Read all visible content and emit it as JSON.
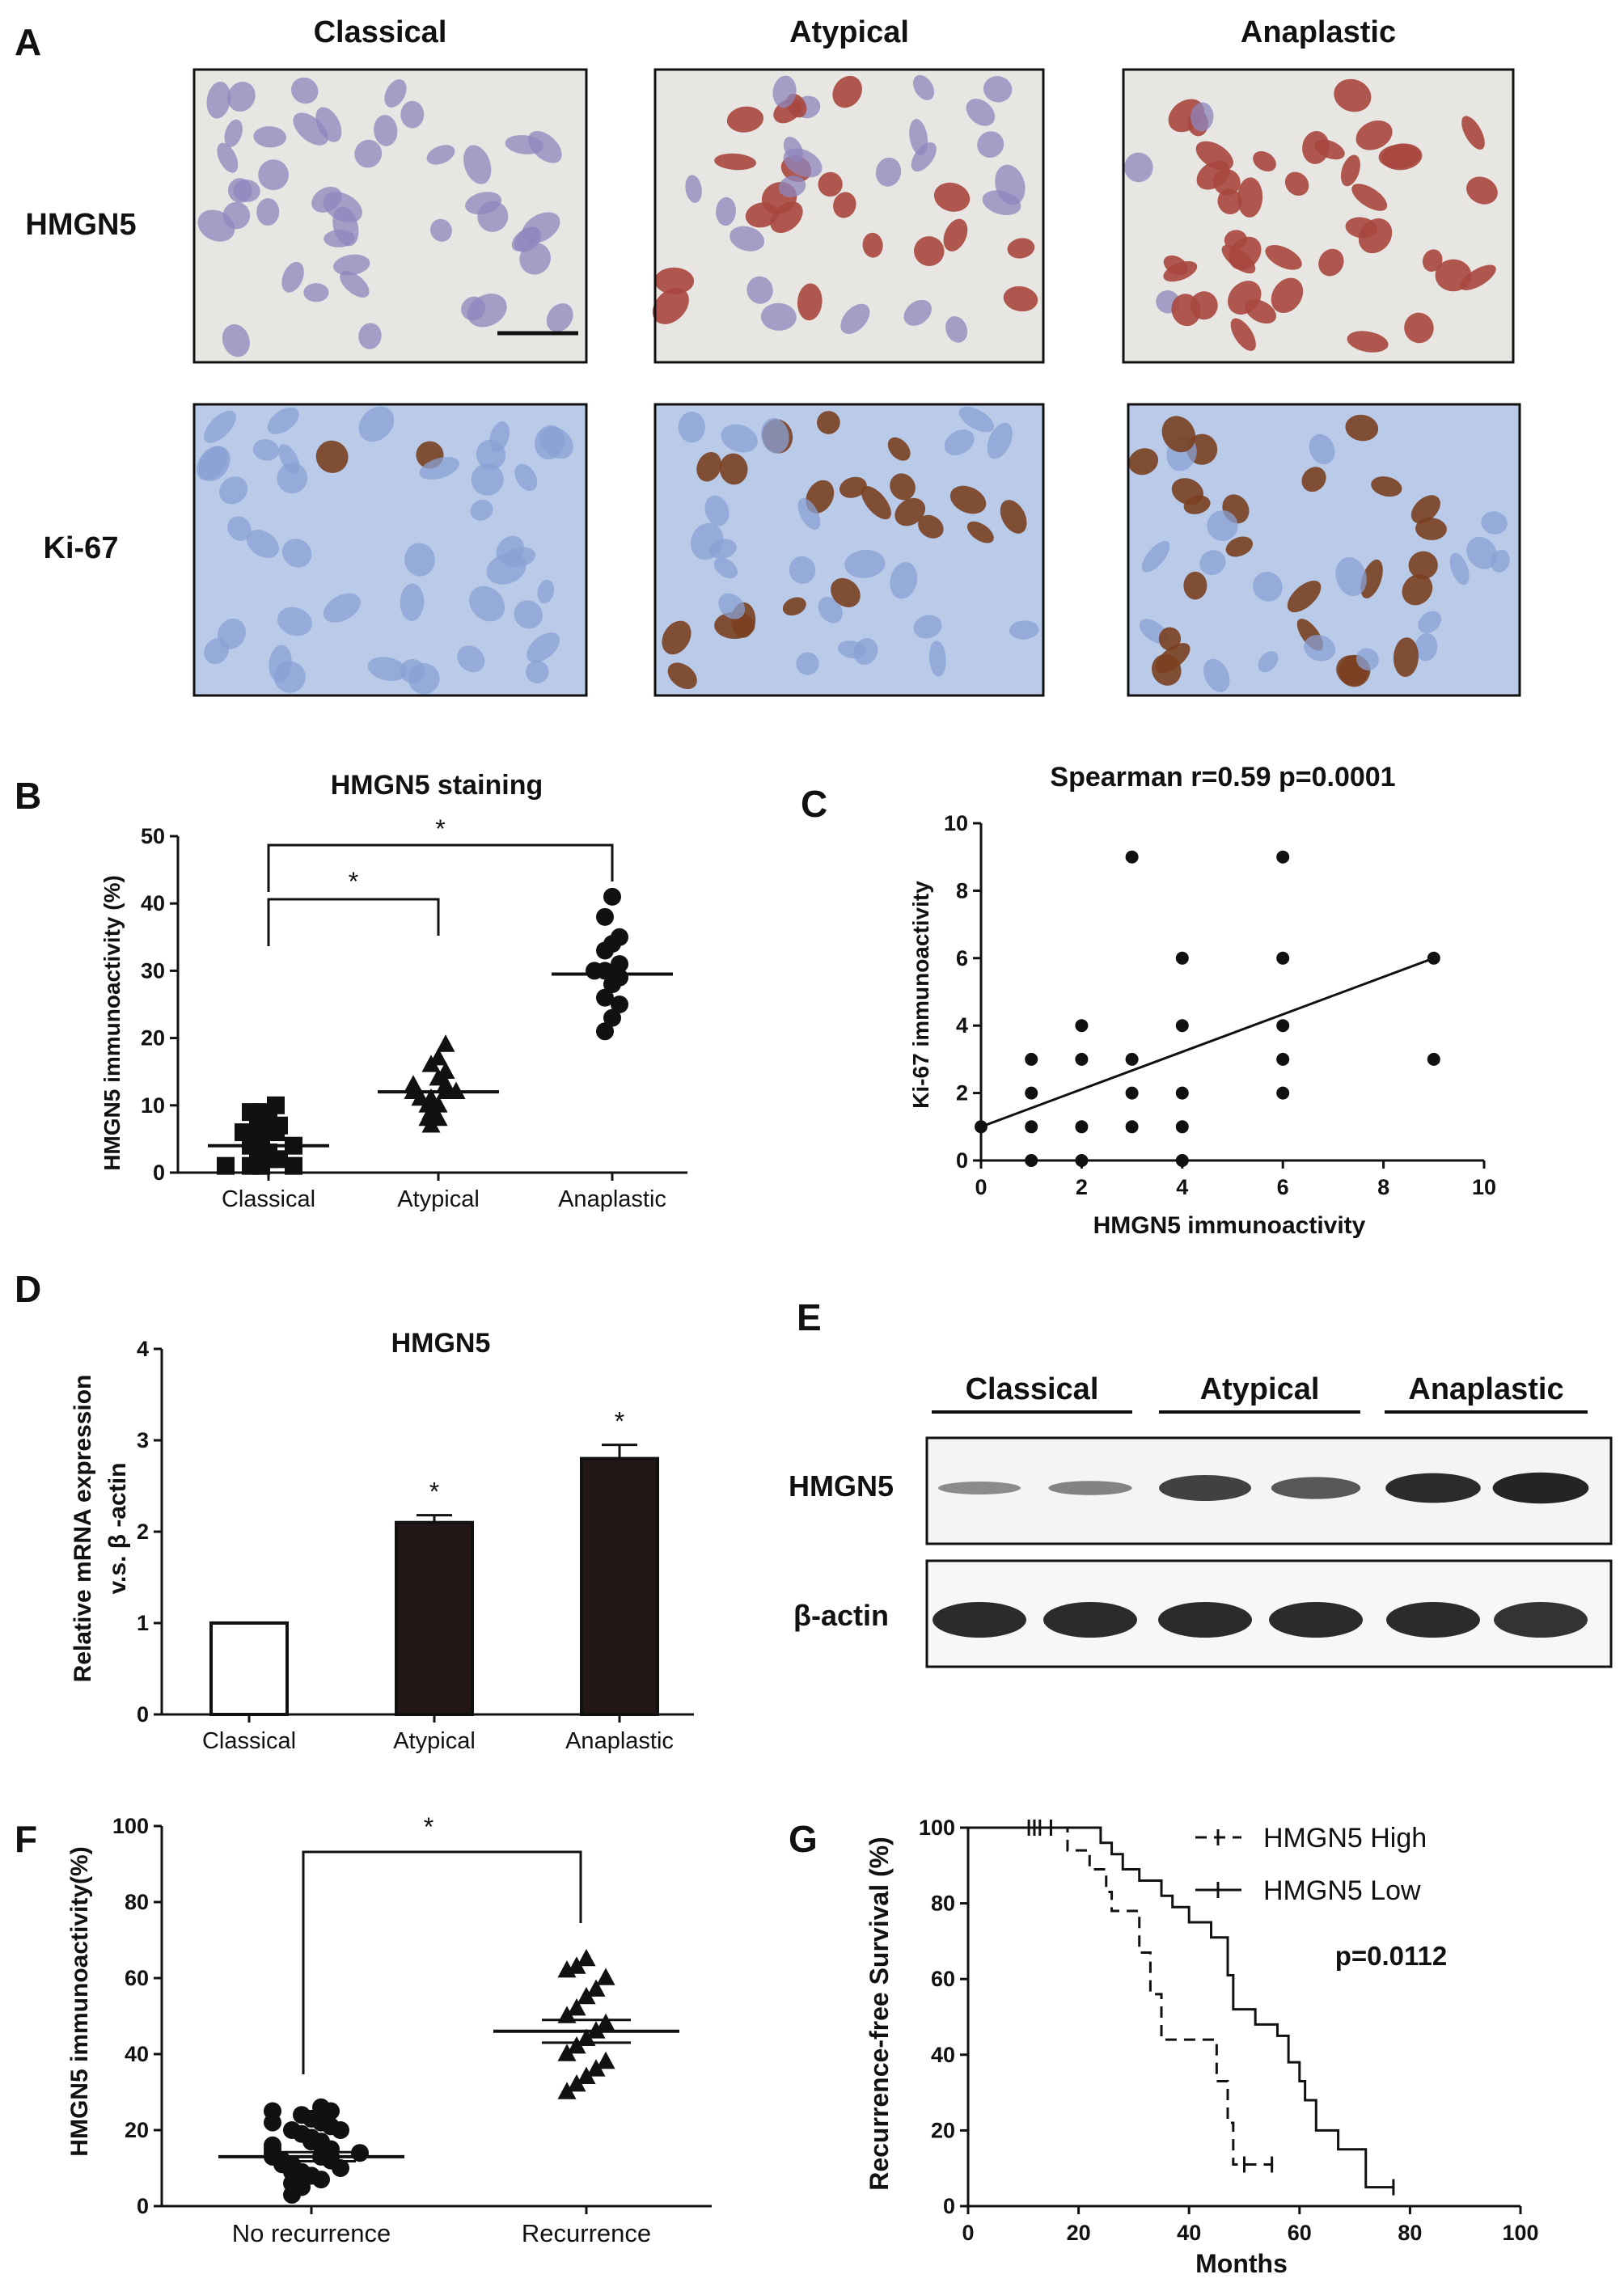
{
  "panels": {
    "A": {
      "letter": "A",
      "columns": [
        "Classical",
        "Atypical",
        "Anaplastic"
      ],
      "rows": [
        "HMGN5",
        "Ki-67"
      ],
      "colors": {
        "hmgn5_bg": "#e8e6e3",
        "hmgn5_cell": "#8d86bd",
        "hmgn5_pos": "#a8473e",
        "ki67_bg": "#b9cbe8",
        "ki67_cell": "#8aa0d4",
        "ki67_pos": "#7a4020"
      }
    },
    "E": {
      "letter": "E",
      "groups": [
        "Classical",
        "Atypical",
        "Anaplastic"
      ],
      "rows": [
        "HMGN5",
        "β-actin"
      ],
      "band_intensity": {
        "HMGN5": [
          0.25,
          0.3,
          0.75,
          0.6,
          0.9,
          0.95
        ],
        "beta_actin": [
          0.9,
          0.9,
          0.9,
          0.9,
          0.9,
          0.85
        ]
      }
    }
  },
  "chart_data": [
    {
      "id": "B",
      "letter": "B",
      "type": "scatter",
      "title": "HMGN5 staining",
      "xlabel": "",
      "ylabel": "HMGN5 immunoactivity (%)",
      "categories": [
        "Classical",
        "Atypical",
        "Anaplastic"
      ],
      "ylim": [
        0,
        50
      ],
      "yticks": [
        0,
        10,
        20,
        30,
        40,
        50
      ],
      "series": [
        {
          "marker": "square",
          "values": [
            1,
            1,
            1,
            1,
            2,
            2,
            2,
            3,
            3,
            4,
            4,
            4,
            5,
            5,
            6,
            6,
            7,
            7,
            7,
            8,
            8,
            9,
            9,
            10
          ]
        },
        {
          "marker": "triangle",
          "values": [
            7,
            8,
            8,
            9,
            10,
            10,
            11,
            11,
            12,
            12,
            12,
            13,
            13,
            14,
            15,
            16,
            17,
            19
          ]
        },
        {
          "marker": "circle",
          "values": [
            21,
            23,
            25,
            26,
            28,
            29,
            30,
            30,
            31,
            33,
            34,
            35,
            38,
            41
          ]
        }
      ],
      "means": [
        4,
        12,
        29.5
      ],
      "significance": [
        {
          "from": 0,
          "to": 1,
          "label": "*"
        },
        {
          "from": 0,
          "to": 2,
          "label": "*"
        }
      ]
    },
    {
      "id": "C",
      "letter": "C",
      "type": "scatter",
      "title": "Spearman r=0.59 p=0.0001",
      "xlabel": "HMGN5 immunoactivity",
      "ylabel": "Ki-67 immunoactivity",
      "xlim": [
        0,
        10
      ],
      "ylim": [
        0,
        10
      ],
      "xticks": [
        0,
        2,
        4,
        6,
        8,
        10
      ],
      "yticks": [
        0,
        2,
        4,
        6,
        8,
        10
      ],
      "points": [
        [
          0,
          1
        ],
        [
          1,
          0
        ],
        [
          1,
          1
        ],
        [
          1,
          2
        ],
        [
          1,
          3
        ],
        [
          2,
          0
        ],
        [
          2,
          1
        ],
        [
          2,
          3
        ],
        [
          2,
          4
        ],
        [
          3,
          1
        ],
        [
          3,
          2
        ],
        [
          3,
          3
        ],
        [
          3,
          9
        ],
        [
          4,
          0
        ],
        [
          4,
          1
        ],
        [
          4,
          2
        ],
        [
          4,
          4
        ],
        [
          4,
          6
        ],
        [
          6,
          2
        ],
        [
          6,
          3
        ],
        [
          6,
          4
        ],
        [
          6,
          6
        ],
        [
          6,
          9
        ],
        [
          9,
          3
        ],
        [
          9,
          6
        ]
      ],
      "fit_line": [
        [
          0,
          1
        ],
        [
          9,
          6
        ]
      ]
    },
    {
      "id": "D",
      "letter": "D",
      "type": "bar",
      "title": "HMGN5",
      "xlabel": "",
      "ylabel_lines": [
        "Relative mRNA expression",
        "v.s. β -actin"
      ],
      "categories": [
        "Classical",
        "Atypical",
        "Anaplastic"
      ],
      "values": [
        1.0,
        2.1,
        2.8
      ],
      "errors": [
        0,
        0.08,
        0.15
      ],
      "fills": [
        "#ffffff",
        "#231815",
        "#231815"
      ],
      "annotations": [
        "",
        "*",
        "*"
      ],
      "ylim": [
        0,
        4
      ],
      "yticks": [
        0,
        1,
        2,
        3,
        4
      ]
    },
    {
      "id": "F",
      "letter": "F",
      "type": "scatter",
      "title": "",
      "xlabel": "",
      "ylabel": "HMGN5 immunoactivity(%)",
      "categories": [
        "No recurrence",
        "Recurrence"
      ],
      "ylim": [
        0,
        100
      ],
      "yticks": [
        0,
        20,
        40,
        60,
        80,
        100
      ],
      "series": [
        {
          "marker": "circle",
          "values": [
            3,
            5,
            6,
            7,
            8,
            8,
            9,
            9,
            10,
            10,
            11,
            11,
            12,
            12,
            13,
            13,
            13,
            14,
            14,
            15,
            15,
            16,
            16,
            17,
            17,
            18,
            19,
            20,
            20,
            21,
            22,
            22,
            23,
            24,
            25,
            25,
            26
          ]
        },
        {
          "marker": "triangle",
          "values": [
            30,
            32,
            34,
            36,
            38,
            40,
            42,
            44,
            46,
            48,
            50,
            52,
            55,
            57,
            60,
            62,
            63,
            65
          ]
        }
      ],
      "means": [
        13,
        46
      ],
      "sem": [
        1.2,
        3
      ],
      "significance": [
        {
          "from": 0,
          "to": 1,
          "label": "*"
        }
      ]
    },
    {
      "id": "G",
      "letter": "G",
      "type": "line",
      "title": "",
      "xlabel": "Months",
      "ylabel": "Recurrence-free Survival (%)",
      "xlim": [
        0,
        100
      ],
      "ylim": [
        0,
        100
      ],
      "xticks": [
        0,
        20,
        40,
        60,
        80,
        100
      ],
      "yticks": [
        0,
        20,
        40,
        60,
        80,
        100
      ],
      "legend_position": "top-right",
      "annotation": "p=0.0112",
      "series": [
        {
          "name": "HMGN5 High",
          "style": "dashed",
          "steps": [
            [
              0,
              100
            ],
            [
              18,
              100
            ],
            [
              18,
              94
            ],
            [
              22,
              94
            ],
            [
              22,
              89
            ],
            [
              25,
              89
            ],
            [
              25,
              83
            ],
            [
              26,
              83
            ],
            [
              26,
              78
            ],
            [
              31,
              78
            ],
            [
              31,
              67
            ],
            [
              33,
              67
            ],
            [
              33,
              56
            ],
            [
              35,
              56
            ],
            [
              35,
              44
            ],
            [
              45,
              44
            ],
            [
              45,
              33
            ],
            [
              47,
              33
            ],
            [
              47,
              22
            ],
            [
              48,
              22
            ],
            [
              48,
              11
            ],
            [
              55,
              11
            ]
          ],
          "censor": [
            [
              50,
              11
            ],
            [
              55,
              11
            ]
          ]
        },
        {
          "name": "HMGN5 Low",
          "style": "solid",
          "steps": [
            [
              0,
              100
            ],
            [
              24,
              100
            ],
            [
              24,
              96
            ],
            [
              26,
              96
            ],
            [
              26,
              93
            ],
            [
              28,
              93
            ],
            [
              28,
              89
            ],
            [
              31,
              89
            ],
            [
              31,
              86
            ],
            [
              35,
              86
            ],
            [
              35,
              82
            ],
            [
              37,
              82
            ],
            [
              37,
              79
            ],
            [
              40,
              79
            ],
            [
              40,
              75
            ],
            [
              44,
              75
            ],
            [
              44,
              71
            ],
            [
              47,
              71
            ],
            [
              47,
              61
            ],
            [
              48,
              61
            ],
            [
              48,
              52
            ],
            [
              52,
              52
            ],
            [
              52,
              48
            ],
            [
              56,
              48
            ],
            [
              56,
              45
            ],
            [
              58,
              45
            ],
            [
              58,
              38
            ],
            [
              60,
              38
            ],
            [
              60,
              33
            ],
            [
              61,
              33
            ],
            [
              61,
              28
            ],
            [
              63,
              28
            ],
            [
              63,
              20
            ],
            [
              67,
              20
            ],
            [
              67,
              15
            ],
            [
              72,
              15
            ],
            [
              72,
              5
            ],
            [
              77,
              5
            ]
          ],
          "censor": [
            [
              11,
              100
            ],
            [
              12,
              100
            ],
            [
              13,
              100
            ],
            [
              15,
              100
            ],
            [
              77,
              5
            ]
          ]
        }
      ]
    }
  ]
}
